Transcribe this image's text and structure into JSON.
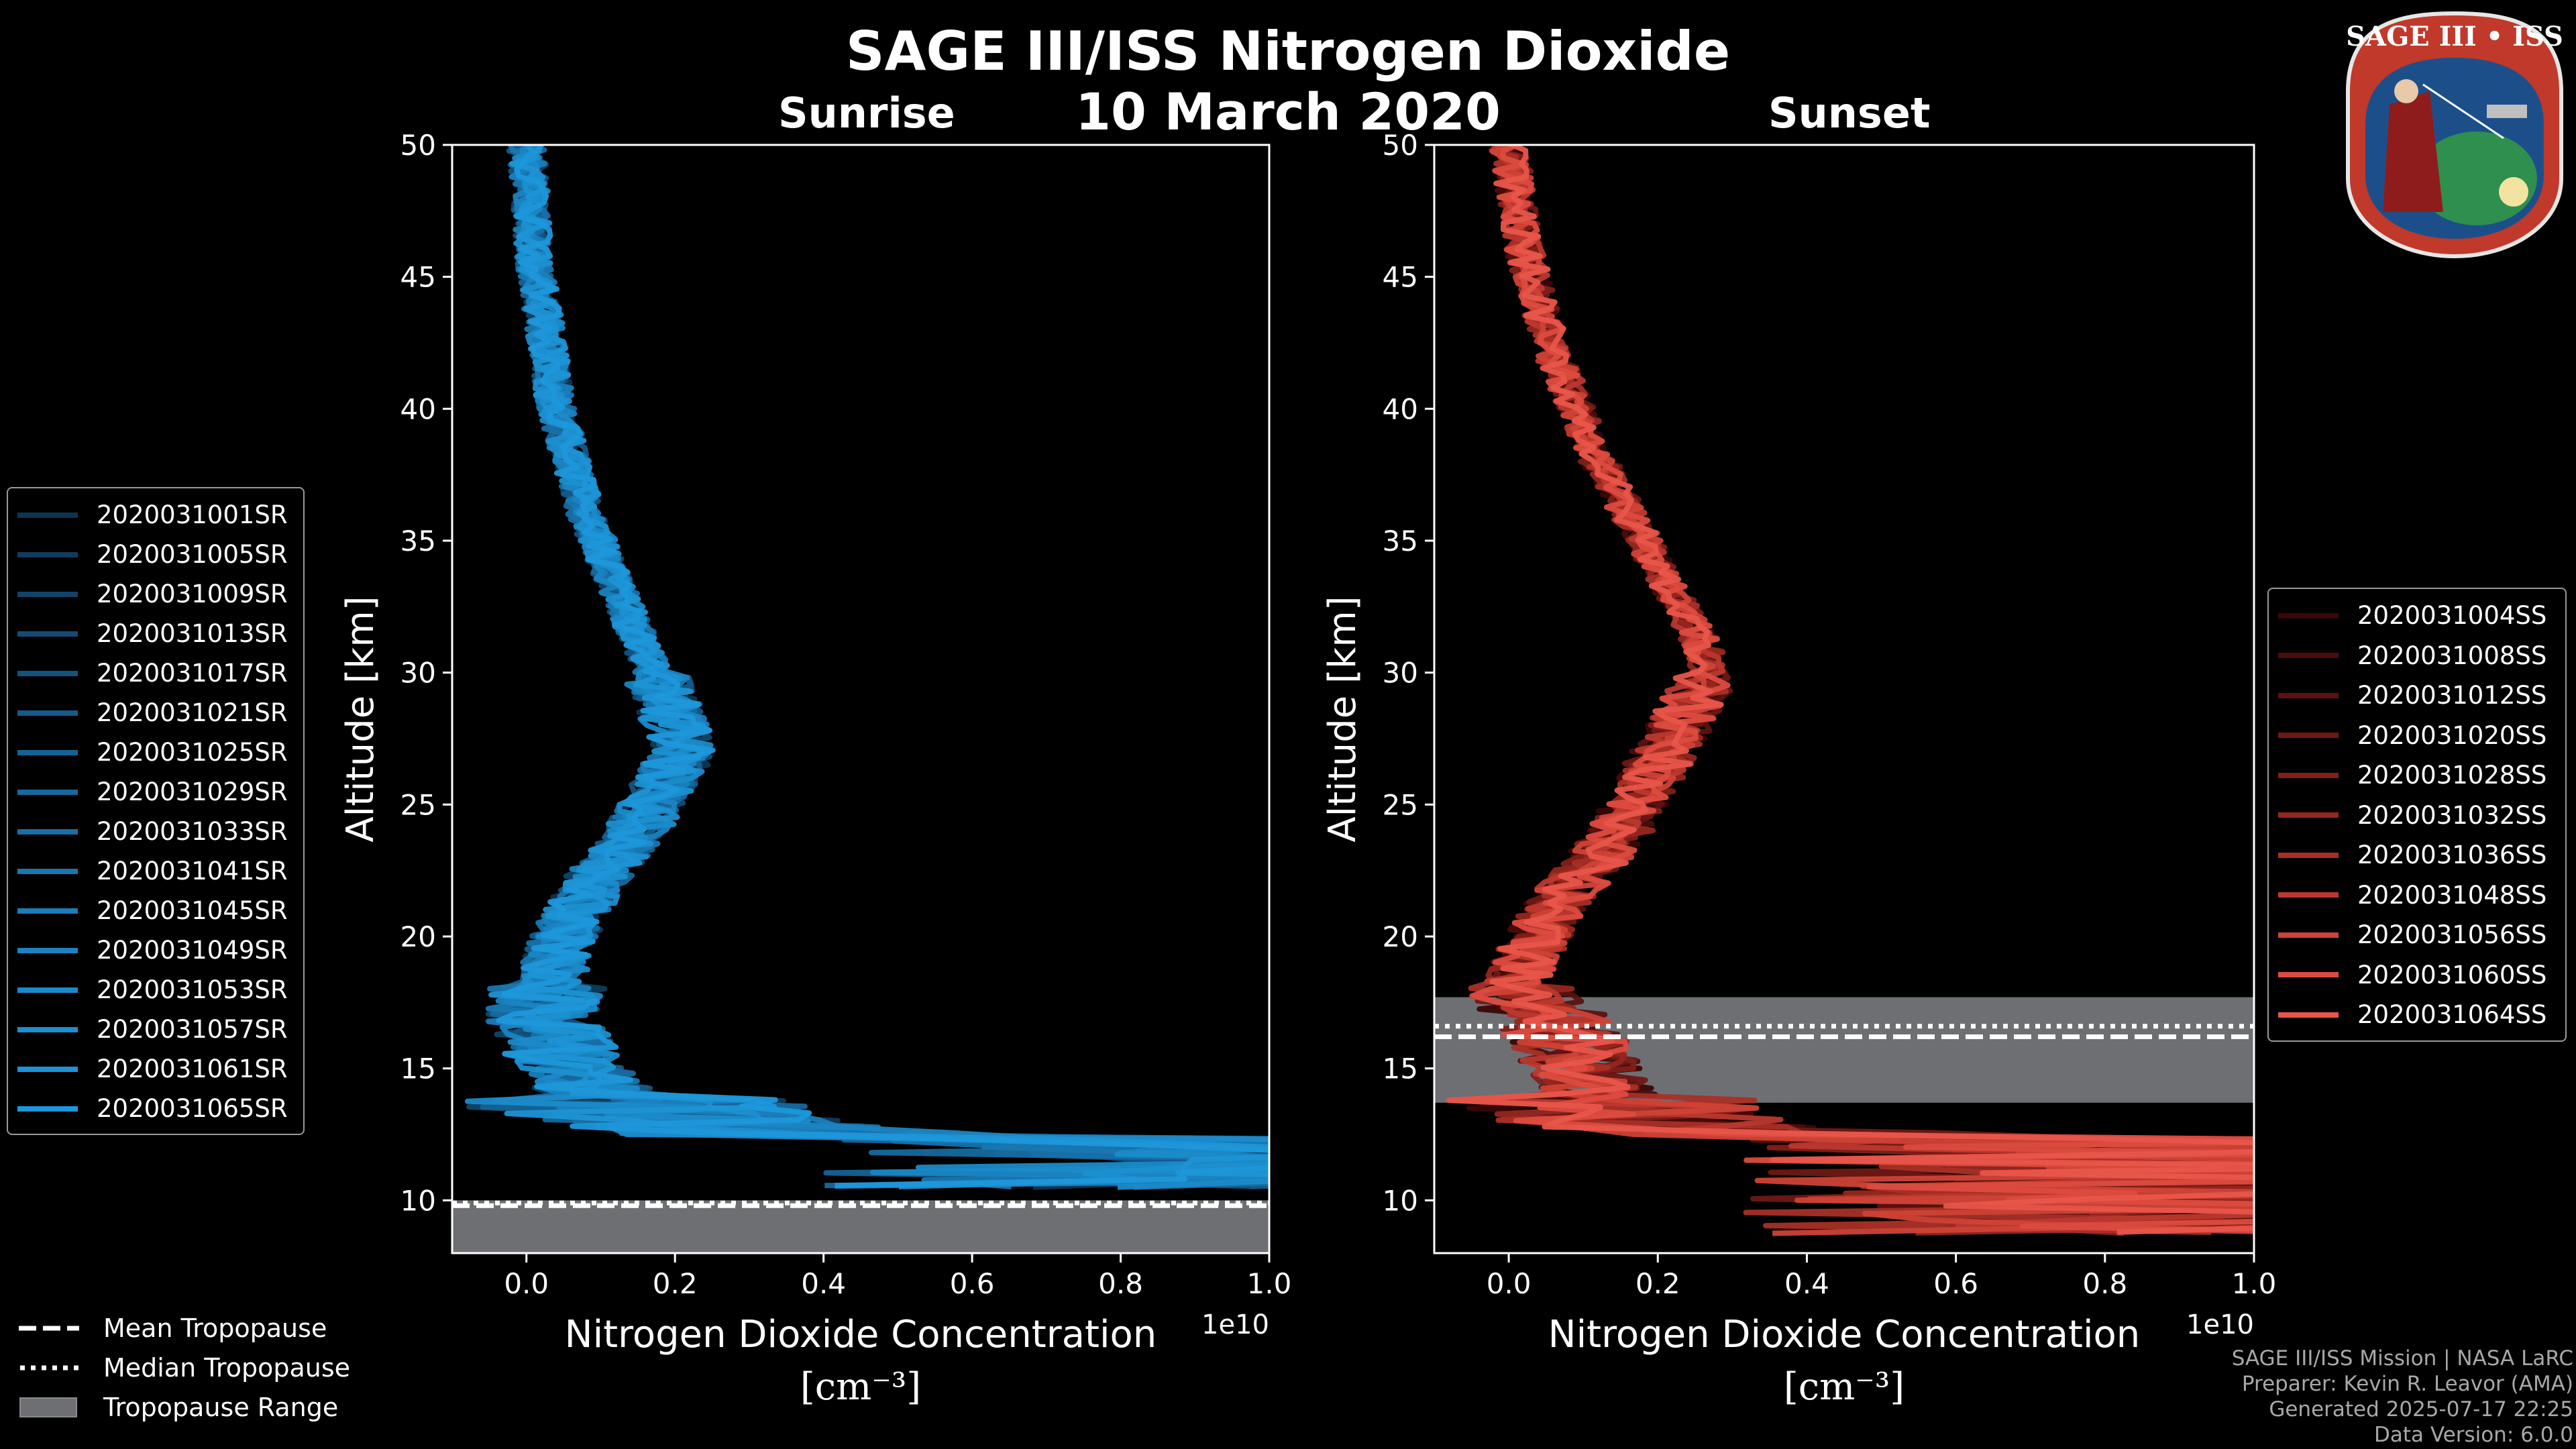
{
  "header": {
    "title": "SAGE III/ISS Nitrogen Dioxide",
    "date": "10 March 2020"
  },
  "badge": {
    "text": "SAGE III • ISS"
  },
  "credits": [
    "SAGE III/ISS Mission | NASA LaRC",
    "Preparer: Kevin R. Leavor (AMA)",
    "Generated 2025-07-17 22:25",
    "Data Version: 6.0.0"
  ],
  "tropopause_legend": {
    "mean": "Mean Tropopause",
    "median": "Median Tropopause",
    "range": "Tropopause Range"
  },
  "colors": {
    "background": "#000000",
    "tropopause_range": "#6e6f73",
    "sunrise_base": "#1e90d4",
    "sunset_base": "#e8554a"
  },
  "chart_data": [
    {
      "type": "line",
      "title": "Sunrise",
      "xlabel": "Nitrogen Dioxide Concentration",
      "xunit": "[cm⁻³]",
      "ylabel": "Altitude [km]",
      "x_scale_label": "1e10",
      "xlim": [
        -0.1,
        1.0
      ],
      "ylim": [
        8,
        50
      ],
      "xticks": [
        0.0,
        0.2,
        0.4,
        0.6,
        0.8,
        1.0
      ],
      "xtick_labels": [
        "0.0",
        "0.2",
        "0.4",
        "0.6",
        "0.8",
        "1.0"
      ],
      "yticks": [
        10,
        15,
        20,
        25,
        30,
        35,
        40,
        45,
        50
      ],
      "ytick_labels": [
        "10",
        "15",
        "20",
        "25",
        "30",
        "35",
        "40",
        "45",
        "50"
      ],
      "tropopause": {
        "mean": 9.8,
        "median": 9.9,
        "range": [
          8,
          10.0
        ]
      },
      "grid": false,
      "legend_position": "left",
      "series": [
        {
          "name": "2020031001SR",
          "color": "#0d3550"
        },
        {
          "name": "2020031005SR",
          "color": "#0f3c5c"
        },
        {
          "name": "2020031009SR",
          "color": "#114468"
        },
        {
          "name": "2020031013SR",
          "color": "#124c74"
        },
        {
          "name": "2020031017SR",
          "color": "#13537f"
        },
        {
          "name": "2020031021SR",
          "color": "#145b8a"
        },
        {
          "name": "2020031025SR",
          "color": "#156294"
        },
        {
          "name": "2020031029SR",
          "color": "#16699e"
        },
        {
          "name": "2020031033SR",
          "color": "#1770a8"
        },
        {
          "name": "2020031041SR",
          "color": "#1877b1"
        },
        {
          "name": "2020031045SR",
          "color": "#197eba"
        },
        {
          "name": "2020031049SR",
          "color": "#1a84c2"
        },
        {
          "name": "2020031053SR",
          "color": "#1b8ac9"
        },
        {
          "name": "2020031057SR",
          "color": "#1c8fd0"
        },
        {
          "name": "2020031061SR",
          "color": "#1d93d5"
        },
        {
          "name": "2020031065SR",
          "color": "#1e97da"
        }
      ],
      "profile": [
        [
          50,
          0.0
        ],
        [
          48,
          0.005
        ],
        [
          46,
          0.01
        ],
        [
          44,
          0.02
        ],
        [
          42,
          0.03
        ],
        [
          40,
          0.04
        ],
        [
          38,
          0.06
        ],
        [
          36,
          0.08
        ],
        [
          34,
          0.11
        ],
        [
          32,
          0.14
        ],
        [
          30,
          0.17
        ],
        [
          29,
          0.19
        ],
        [
          28,
          0.2
        ],
        [
          27,
          0.21
        ],
        [
          26,
          0.19
        ],
        [
          25,
          0.17
        ],
        [
          24,
          0.15
        ],
        [
          23,
          0.12
        ],
        [
          22,
          0.09
        ],
        [
          21,
          0.07
        ],
        [
          20,
          0.05
        ],
        [
          19,
          0.04
        ],
        [
          18,
          0.03
        ],
        [
          17,
          0.02
        ],
        [
          16,
          0.04
        ],
        [
          15,
          0.06
        ],
        [
          14,
          0.1
        ],
        [
          13,
          0.2
        ],
        [
          12.5,
          0.35
        ],
        [
          12,
          0.8
        ],
        [
          11.5,
          1.0
        ],
        [
          11,
          1.0
        ],
        [
          10.5,
          1.0
        ]
      ]
    },
    {
      "type": "line",
      "title": "Sunset",
      "xlabel": "Nitrogen Dioxide Concentration",
      "xunit": "[cm⁻³]",
      "ylabel": "Altitude [km]",
      "x_scale_label": "1e10",
      "xlim": [
        -0.1,
        1.0
      ],
      "ylim": [
        8,
        50
      ],
      "xticks": [
        0.0,
        0.2,
        0.4,
        0.6,
        0.8,
        1.0
      ],
      "xtick_labels": [
        "0.0",
        "0.2",
        "0.4",
        "0.6",
        "0.8",
        "1.0"
      ],
      "yticks": [
        10,
        15,
        20,
        25,
        30,
        35,
        40,
        45,
        50
      ],
      "ytick_labels": [
        "10",
        "15",
        "20",
        "25",
        "30",
        "35",
        "40",
        "45",
        "50"
      ],
      "tropopause": {
        "mean": 16.2,
        "median": 16.6,
        "range": [
          13.7,
          17.7
        ]
      },
      "grid": false,
      "legend_position": "right",
      "series": [
        {
          "name": "2020031004SS",
          "color": "#3a0707"
        },
        {
          "name": "2020031008SS",
          "color": "#4a0c0c"
        },
        {
          "name": "2020031012SS",
          "color": "#5c1210"
        },
        {
          "name": "2020031020SS",
          "color": "#6e1814"
        },
        {
          "name": "2020031028SS",
          "color": "#821f19"
        },
        {
          "name": "2020031032SS",
          "color": "#95271f"
        },
        {
          "name": "2020031036SS",
          "color": "#a82f26"
        },
        {
          "name": "2020031048SS",
          "color": "#bb382e"
        },
        {
          "name": "2020031056SS",
          "color": "#cd4236"
        },
        {
          "name": "2020031060SS",
          "color": "#dc4b3f"
        },
        {
          "name": "2020031064SS",
          "color": "#e8554a"
        }
      ],
      "profile": [
        [
          50,
          0.0
        ],
        [
          48,
          0.01
        ],
        [
          46,
          0.02
        ],
        [
          44,
          0.04
        ],
        [
          42,
          0.06
        ],
        [
          40,
          0.09
        ],
        [
          38,
          0.12
        ],
        [
          36,
          0.16
        ],
        [
          34,
          0.2
        ],
        [
          33,
          0.22
        ],
        [
          32,
          0.24
        ],
        [
          31,
          0.26
        ],
        [
          30,
          0.27
        ],
        [
          29,
          0.25
        ],
        [
          28,
          0.23
        ],
        [
          27,
          0.21
        ],
        [
          26,
          0.19
        ],
        [
          25,
          0.17
        ],
        [
          24,
          0.15
        ],
        [
          23,
          0.12
        ],
        [
          22,
          0.09
        ],
        [
          21,
          0.06
        ],
        [
          20,
          0.04
        ],
        [
          19,
          0.02
        ],
        [
          18,
          0.01
        ],
        [
          17,
          0.05
        ],
        [
          16,
          0.08
        ],
        [
          15,
          0.1
        ],
        [
          14,
          0.12
        ],
        [
          13,
          0.15
        ],
        [
          12,
          0.6
        ],
        [
          11.5,
          1.0
        ],
        [
          11,
          1.0
        ],
        [
          10,
          1.0
        ],
        [
          9.5,
          1.0
        ],
        [
          9,
          1.0
        ],
        [
          8.5,
          1.0
        ]
      ]
    }
  ]
}
